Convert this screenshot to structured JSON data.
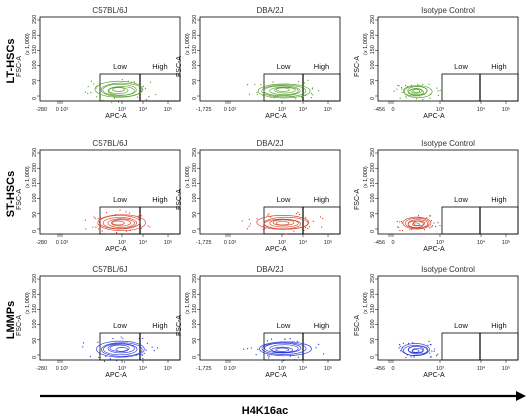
{
  "chart_data": {
    "type": "scatter",
    "x_axis_title": "H4K16ac",
    "xlabel": "APC-A",
    "ylabel": "FSC-A",
    "y_scale_label": "(x 1,000)",
    "y_ticks": [
      "250",
      "200",
      "150",
      "100",
      "50",
      "0"
    ],
    "x_tick_labels_common": [
      "10³",
      "10⁴",
      "10⁵"
    ],
    "gate_labels": {
      "low": "Low",
      "high": "High"
    },
    "rows": [
      {
        "label": "LT-HSCs",
        "color": "#4e9a1e"
      },
      {
        "label": "ST-HSCs",
        "color": "#d2381c"
      },
      {
        "label": "LMMPs",
        "color": "#1f2ed8"
      }
    ],
    "columns": [
      "C57BL/6J",
      "DBA/2J",
      "Isotype Control"
    ],
    "x_neg_labels": [
      [
        "-280",
        "-1,725",
        "-456"
      ],
      [
        "-280",
        "-1,725",
        "-456"
      ],
      [
        "-280",
        "-1,725",
        "-456"
      ]
    ],
    "x_zero_labels": [
      [
        "0 10²",
        "0 10²",
        "0"
      ],
      [
        "0 10²",
        "0 10²",
        "0"
      ],
      [
        "0 10²",
        "0 10²",
        "0"
      ]
    ],
    "grid": false,
    "legend": "none"
  }
}
